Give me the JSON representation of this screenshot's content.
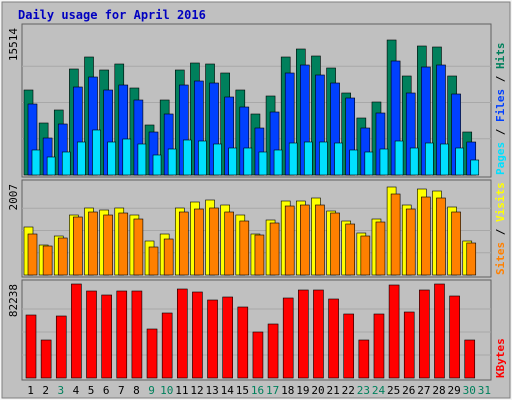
{
  "colors": {
    "frame_outer": "#f5f5f5",
    "frame_inner": "#c0c0c0",
    "plot_bg": "#c0c0c0",
    "title": "#0000c0",
    "hits_back": "#00805c",
    "files_mid": "#0040ff",
    "pages_front": "#00e0ff",
    "visits_back": "#ffff00",
    "sites_front": "#ff8000",
    "kbytes": "#ff0000",
    "weekday_label": "#000000",
    "weekend_label": "#00805c",
    "gridline": "#a8a8a8"
  },
  "chart_data": {
    "type": "bar",
    "title": "Daily usage for April 2016",
    "categories": [
      "1",
      "2",
      "3",
      "4",
      "5",
      "6",
      "7",
      "8",
      "9",
      "10",
      "11",
      "12",
      "13",
      "14",
      "15",
      "16",
      "17",
      "18",
      "19",
      "20",
      "21",
      "22",
      "23",
      "24",
      "25",
      "26",
      "27",
      "28",
      "29",
      "30",
      "31"
    ],
    "weekend_days": [
      3,
      9,
      10,
      16,
      17,
      23,
      24,
      30,
      31
    ],
    "panels": [
      {
        "id": "hits_files_pages",
        "ymax_label": "15514",
        "ymax": 15514,
        "right_labels": [
          "Pages",
          "Files",
          "Hits"
        ],
        "series": [
          {
            "name": "Hits",
            "values": [
              9000,
              5500,
              6900,
              11200,
              12500,
              11100,
              11700,
              9200,
              5300,
              7900,
              11100,
              11800,
              11700,
              10800,
              9000,
              6400,
              8300,
              12500,
              13300,
              12600,
              11300,
              8700,
              6000,
              7700,
              14200,
              10400,
              13600,
              13500,
              10500,
              4500,
              0
            ]
          },
          {
            "name": "Files",
            "values": [
              7500,
              3900,
              5400,
              9300,
              10300,
              9000,
              9500,
              7900,
              4500,
              6400,
              9500,
              9900,
              9700,
              8200,
              7200,
              5000,
              6700,
              10800,
              11600,
              10600,
              9700,
              8100,
              5000,
              6500,
              12000,
              8700,
              11400,
              11600,
              8600,
              3500,
              0
            ]
          },
          {
            "name": "Pages",
            "values": [
              2600,
              1900,
              2400,
              3500,
              4800,
              3500,
              3800,
              3300,
              2100,
              2700,
              3700,
              3600,
              3300,
              2900,
              2900,
              2400,
              2600,
              3400,
              3500,
              3500,
              3400,
              2600,
              2400,
              2700,
              3600,
              2800,
              3400,
              3300,
              2800,
              1600,
              0
            ]
          }
        ]
      },
      {
        "id": "visits_sites",
        "ymax_label": "2007",
        "ymax": 2007,
        "right_labels": [
          "Sites",
          "Visits"
        ],
        "series": [
          {
            "name": "Visits",
            "values": [
              1050,
              660,
              850,
              1330,
              1480,
              1430,
              1480,
              1330,
              750,
              910,
              1480,
              1620,
              1650,
              1550,
              1320,
              910,
              1210,
              1640,
              1640,
              1700,
              1420,
              1180,
              930,
              1240,
              1940,
              1550,
              1900,
              1850,
              1500,
              740,
              0
            ]
          },
          {
            "name": "Sites",
            "values": [
              910,
              640,
              820,
              1270,
              1380,
              1320,
              1360,
              1230,
              620,
              800,
              1380,
              1460,
              1480,
              1380,
              1200,
              890,
              1140,
              1520,
              1550,
              1550,
              1370,
              1120,
              870,
              1160,
              1780,
              1450,
              1720,
              1700,
              1400,
              700,
              0
            ]
          }
        ]
      },
      {
        "id": "kbytes",
        "ymax_label": "82238",
        "ymax": 82238,
        "right_labels": [
          "KBytes"
        ],
        "series": [
          {
            "name": "KBytes",
            "values": [
              55000,
              33000,
              54000,
              82000,
              76000,
              73000,
              76000,
              76000,
              43000,
              57000,
              78000,
              75000,
              68000,
              71000,
              62000,
              40000,
              47000,
              70000,
              77000,
              77000,
              69000,
              56000,
              33000,
              56000,
              81000,
              58000,
              77000,
              82000,
              72000,
              33000,
              0
            ]
          }
        ]
      }
    ]
  }
}
